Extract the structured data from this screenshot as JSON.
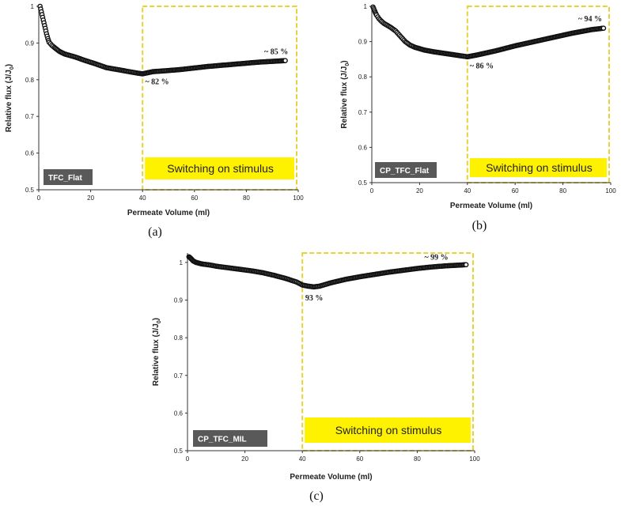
{
  "colors": {
    "marker": "#111111",
    "highlight_border": "#e6d23a",
    "highlight_fill": "#fff200",
    "tag_fill": "#595959"
  },
  "chart_data": [
    {
      "type": "scatter",
      "panel_label": "(a)",
      "tag": "TFC_Flat",
      "xlabel": "Permeate Volume (ml)",
      "ylabel": "Relative flux (J/J",
      "ylabel_sub": "0",
      "ylabel_close": ")",
      "xlim": [
        0,
        100
      ],
      "ylim": [
        0.5,
        1
      ],
      "xticks": [
        0,
        20,
        40,
        60,
        80,
        100
      ],
      "yticks": [
        0.5,
        0.6,
        0.7,
        0.8,
        0.9,
        1
      ],
      "ytick_labels": [
        "0.5",
        "0.6",
        "0.7",
        "0.8",
        "0.9",
        "1"
      ],
      "highlight_region": {
        "x_from": 40,
        "x_to": 100,
        "label": "Switching on stimulus"
      },
      "annotations": [
        {
          "text": "~ 82 %",
          "x": 41,
          "y": 0.818
        },
        {
          "text": "~ 85 %",
          "x": 93,
          "y": 0.852
        }
      ],
      "series": [
        {
          "x": [
            0.5,
            1,
            1.5,
            2,
            2.5,
            3,
            3.5,
            4,
            5,
            6,
            8,
            10,
            14,
            18,
            22,
            26,
            30,
            34,
            38,
            40,
            42,
            44,
            46,
            50,
            55,
            60,
            65,
            70,
            75,
            80,
            85,
            90,
            95
          ],
          "y": [
            1.0,
            0.985,
            0.97,
            0.955,
            0.94,
            0.925,
            0.912,
            0.902,
            0.894,
            0.888,
            0.877,
            0.87,
            0.862,
            0.852,
            0.843,
            0.833,
            0.828,
            0.823,
            0.818,
            0.816,
            0.819,
            0.822,
            0.823,
            0.825,
            0.828,
            0.832,
            0.836,
            0.839,
            0.842,
            0.845,
            0.848,
            0.85,
            0.852
          ]
        }
      ]
    },
    {
      "type": "scatter",
      "panel_label": "(b)",
      "tag": "CP_TFC_Flat",
      "xlabel": "Permeate Volume (ml)",
      "ylabel": "Relative flux (J/J",
      "ylabel_sub": "0",
      "ylabel_close": ")",
      "xlim": [
        0,
        100
      ],
      "ylim": [
        0.5,
        1
      ],
      "xticks": [
        0,
        20,
        40,
        60,
        80,
        100
      ],
      "yticks": [
        0.5,
        0.6,
        0.7,
        0.8,
        0.9,
        1
      ],
      "ytick_labels": [
        "0.5",
        "0.6",
        "0.7",
        "0.8",
        "0.9",
        "1"
      ],
      "highlight_region": {
        "x_from": 40,
        "x_to": 100,
        "label": "Switching on stimulus"
      },
      "annotations": [
        {
          "text": "~ 86 %",
          "x": 41,
          "y": 0.855
        },
        {
          "text": "~ 94 %",
          "x": 93,
          "y": 0.94
        }
      ],
      "series": [
        {
          "x": [
            0.5,
            1,
            1.5,
            2,
            3,
            4,
            5,
            6,
            8,
            10,
            12,
            14,
            16,
            18,
            22,
            26,
            30,
            34,
            38,
            40,
            44,
            48,
            52,
            56,
            60,
            64,
            68,
            72,
            76,
            80,
            84,
            88,
            92,
            97
          ],
          "y": [
            0.998,
            0.99,
            0.982,
            0.975,
            0.965,
            0.958,
            0.952,
            0.948,
            0.94,
            0.93,
            0.915,
            0.9,
            0.89,
            0.884,
            0.876,
            0.871,
            0.867,
            0.863,
            0.859,
            0.857,
            0.862,
            0.868,
            0.874,
            0.881,
            0.888,
            0.894,
            0.9,
            0.906,
            0.912,
            0.918,
            0.924,
            0.929,
            0.934,
            0.938
          ]
        }
      ]
    },
    {
      "type": "scatter",
      "panel_label": "(c)",
      "tag": "CP_TFC_MIL",
      "xlabel": "Permeate Volume (ml)",
      "ylabel": "Relative flux (J/J",
      "ylabel_sub": "0",
      "ylabel_close": ")",
      "xlim": [
        0,
        100
      ],
      "ylim": [
        0.5,
        1.025
      ],
      "xticks": [
        0,
        20,
        40,
        60,
        80,
        100
      ],
      "yticks": [
        0.5,
        0.6,
        0.7,
        0.8,
        0.9,
        1
      ],
      "ytick_labels": [
        "0.5",
        "0.6",
        "0.7",
        "0.8",
        "0.9",
        "1"
      ],
      "highlight_region": {
        "x_from": 40,
        "x_to": 100,
        "label": "Switching on stimulus"
      },
      "annotations": [
        {
          "text": "93 %",
          "x": 41,
          "y": 0.928
        },
        {
          "text": "~ 99 %",
          "x": 88,
          "y": 0.99
        }
      ],
      "series": [
        {
          "x": [
            0.5,
            1,
            1.5,
            2,
            3,
            4,
            5,
            6,
            8,
            10,
            14,
            18,
            22,
            26,
            30,
            34,
            38,
            40,
            42,
            44,
            46,
            50,
            55,
            60,
            65,
            70,
            75,
            80,
            85,
            90,
            95,
            97
          ],
          "y": [
            1.015,
            1.012,
            1.008,
            1.004,
            1.0,
            0.998,
            0.996,
            0.995,
            0.993,
            0.99,
            0.986,
            0.982,
            0.978,
            0.973,
            0.966,
            0.958,
            0.948,
            0.94,
            0.937,
            0.935,
            0.937,
            0.946,
            0.955,
            0.962,
            0.968,
            0.974,
            0.979,
            0.984,
            0.988,
            0.991,
            0.993,
            0.994
          ]
        }
      ]
    }
  ]
}
